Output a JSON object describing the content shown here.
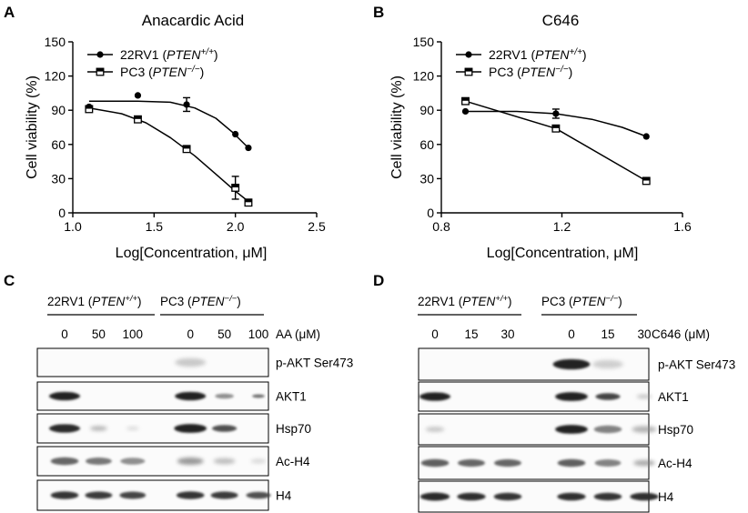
{
  "panels": {
    "A": "A",
    "B": "B",
    "C": "C",
    "D": "D"
  },
  "chart_data": [
    {
      "type": "line",
      "title": "Anacardic Acid",
      "xlabel": "Log[Concentration, μM]",
      "ylabel": "Cell viability (%)",
      "xlim": [
        1.0,
        2.5
      ],
      "ylim": [
        0,
        150
      ],
      "xticks": [
        "1.0",
        "1.5",
        "2.0",
        "2.5"
      ],
      "yticks": [
        "0",
        "30",
        "60",
        "90",
        "120",
        "150"
      ],
      "legend_position": "top",
      "series": [
        {
          "name": "22RV1 (PTEN+/+)",
          "name_base": "22RV1 (",
          "name_gene": "PTEN",
          "name_sup": "+/+",
          "name_end": ")",
          "marker": "filled-circle",
          "points": [
            {
              "x": 1.1,
              "y": 93,
              "err": 0
            },
            {
              "x": 1.4,
              "y": 103,
              "err": 0
            },
            {
              "x": 1.7,
              "y": 95,
              "err": 6
            },
            {
              "x": 2.0,
              "y": 69,
              "err": 0
            },
            {
              "x": 2.08,
              "y": 57,
              "err": 0
            }
          ],
          "curve": [
            [
              1.1,
              98
            ],
            [
              1.4,
              98
            ],
            [
              1.6,
              97
            ],
            [
              1.75,
              92
            ],
            [
              1.88,
              83
            ],
            [
              1.98,
              71
            ],
            [
              2.08,
              57
            ]
          ]
        },
        {
          "name": "PC3 (PTEN−/−)",
          "name_base": "PC3 (",
          "name_gene": "PTEN",
          "name_sup": "−/−",
          "name_end": ")",
          "marker": "open-square",
          "points": [
            {
              "x": 1.1,
              "y": 91,
              "err": 0
            },
            {
              "x": 1.4,
              "y": 82,
              "err": 0
            },
            {
              "x": 1.7,
              "y": 56,
              "err": 0
            },
            {
              "x": 2.0,
              "y": 22,
              "err": 10
            },
            {
              "x": 2.08,
              "y": 9,
              "err": 0
            }
          ],
          "curve": [
            [
              1.1,
              92
            ],
            [
              1.3,
              87
            ],
            [
              1.45,
              79
            ],
            [
              1.6,
              66
            ],
            [
              1.75,
              50
            ],
            [
              1.88,
              34
            ],
            [
              2.0,
              19
            ],
            [
              2.08,
              10
            ]
          ]
        }
      ]
    },
    {
      "type": "line",
      "title": "C646",
      "xlabel": "Log[Concentration, μM]",
      "ylabel": "Cell viability (%)",
      "xlim": [
        0.8,
        1.6
      ],
      "ylim": [
        0,
        150
      ],
      "xticks": [
        "0.8",
        "1.2",
        "1.6"
      ],
      "yticks": [
        "0",
        "30",
        "60",
        "90",
        "120",
        "150"
      ],
      "legend_position": "top",
      "series": [
        {
          "name": "22RV1 (PTEN+/+)",
          "name_base": "22RV1 (",
          "name_gene": "PTEN",
          "name_sup": "+/+",
          "name_end": ")",
          "marker": "filled-circle",
          "points": [
            {
              "x": 0.88,
              "y": 89,
              "err": 0
            },
            {
              "x": 1.18,
              "y": 87,
              "err": 4
            },
            {
              "x": 1.48,
              "y": 67,
              "err": 0
            }
          ],
          "curve": [
            [
              0.88,
              89
            ],
            [
              1.05,
              89
            ],
            [
              1.18,
              87
            ],
            [
              1.3,
              82
            ],
            [
              1.4,
              75
            ],
            [
              1.48,
              67
            ]
          ]
        },
        {
          "name": "PC3 (PTEN−/−)",
          "name_base": "PC3 (",
          "name_gene": "PTEN",
          "name_sup": "−/−",
          "name_end": ")",
          "marker": "open-square",
          "points": [
            {
              "x": 0.88,
              "y": 98,
              "err": 0
            },
            {
              "x": 1.18,
              "y": 74,
              "err": 0
            },
            {
              "x": 1.48,
              "y": 28,
              "err": 0
            }
          ],
          "curve": [
            [
              0.88,
              98
            ],
            [
              1.18,
              74
            ],
            [
              1.48,
              28
            ]
          ]
        }
      ]
    }
  ],
  "blots": [
    {
      "groups": [
        {
          "base": "22RV1 (",
          "gene": "PTEN",
          "sup": "+/+",
          "end": ")"
        },
        {
          "base": "PC3 (",
          "gene": "PTEN",
          "sup": "−/−",
          "end": ")"
        }
      ],
      "lanes": [
        "0",
        "50",
        "100",
        "0",
        "50",
        "100"
      ],
      "treatment": "AA (μM)",
      "rows": [
        "p-AKT Ser473",
        "AKT1",
        "Hsp70",
        "Ac-H4",
        "H4"
      ]
    },
    {
      "groups": [
        {
          "base": "22RV1 (",
          "gene": "PTEN",
          "sup": "+/+",
          "end": ")"
        },
        {
          "base": "PC3 (",
          "gene": "PTEN",
          "sup": "−/−",
          "end": ")"
        }
      ],
      "lanes": [
        "0",
        "15",
        "30",
        "0",
        "15",
        "30"
      ],
      "treatment": "C646 (μM)",
      "rows": [
        "p-AKT Ser473",
        "AKT1",
        "Hsp70",
        "Ac-H4",
        "H4"
      ]
    }
  ]
}
